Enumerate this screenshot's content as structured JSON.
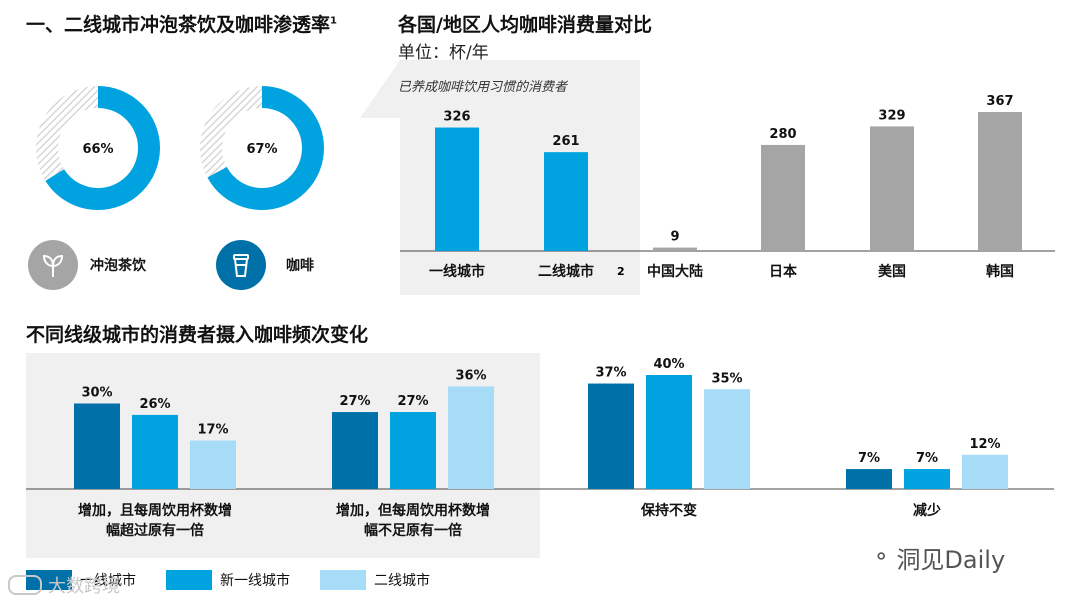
{
  "section1": {
    "title": "一、二线城市冲泡茶饮及咖啡渗透率",
    "title_sup": "1",
    "donuts": [
      {
        "label": "冲泡茶饮",
        "value": 66,
        "value_label": "66%",
        "icon": "tea-leaf-icon"
      },
      {
        "label": "咖啡",
        "value": 67,
        "value_label": "67%",
        "icon": "coffee-cup-icon"
      }
    ]
  },
  "section2": {
    "title": "各国/地区人均咖啡消费量对比",
    "unit": "单位：杯/年",
    "panel_note": "已养成咖啡饮用习惯的消费者",
    "footnote_mark": "2"
  },
  "section3": {
    "title": "不同线级城市的消费者摄入咖啡频次变化"
  },
  "watermarks": {
    "left": "大数跨境",
    "right": "洞见Daily"
  },
  "colors": {
    "tier1": "#0071a8",
    "new_tier1": "#00a3e0",
    "tier2": "#a6dcf8",
    "gray": "#a5a5a5",
    "hatch": "#cfcfcf",
    "panel": "#f0f0f0"
  },
  "chart_data": [
    {
      "type": "bar",
      "title": "各国/地区人均咖啡消费量对比",
      "unit": "杯/年",
      "categories": [
        "一线城市",
        "二线城市",
        "中国大陆",
        "日本",
        "美国",
        "韩国"
      ],
      "values": [
        326,
        261,
        9,
        280,
        329,
        367
      ],
      "value_labels": [
        "326",
        "261",
        "9",
        "280",
        "329",
        "367"
      ],
      "ylim": [
        0,
        380
      ]
    },
    {
      "type": "bar",
      "title": "不同线级城市的消费者摄入咖啡频次变化",
      "categories": [
        "增加，且每周饮用杯数增\n幅超过原有一倍",
        "增加，但每周饮用杯数增\n幅不足原有一倍",
        "保持不变",
        "减少"
      ],
      "series": [
        {
          "name": "一线城市",
          "values": [
            30,
            27,
            37,
            7
          ]
        },
        {
          "name": "新一线城市",
          "values": [
            26,
            27,
            40,
            7
          ]
        },
        {
          "name": "二线城市",
          "values": [
            17,
            36,
            35,
            12
          ]
        }
      ],
      "unit": "%",
      "ylim": [
        0,
        40
      ],
      "legend": "bottom-left"
    }
  ]
}
